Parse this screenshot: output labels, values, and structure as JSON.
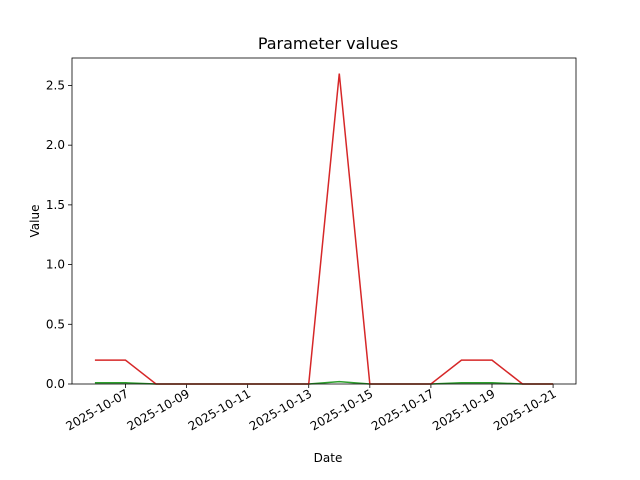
{
  "chart_data": {
    "type": "line",
    "title": "Parameter values",
    "x_label": "Date",
    "y_label": "Value",
    "x": [
      "2025-10-06",
      "2025-10-07",
      "2025-10-08",
      "2025-10-09",
      "2025-10-10",
      "2025-10-11",
      "2025-10-12",
      "2025-10-13",
      "2025-10-14",
      "2025-10-15",
      "2025-10-16",
      "2025-10-17",
      "2025-10-18",
      "2025-10-19",
      "2025-10-20",
      "2025-10-21"
    ],
    "series": [
      {
        "color": "#2ca02c",
        "values": [
          0.01,
          0.01,
          0,
          0,
          0,
          0,
          0,
          0,
          0.02,
          0,
          0,
          0,
          0.01,
          0.01,
          0,
          0
        ]
      },
      {
        "color": "#d62728",
        "values": [
          0.2,
          0.2,
          0,
          0,
          0,
          0,
          0,
          0,
          2.6,
          0,
          0,
          0,
          0.2,
          0.2,
          0,
          0
        ]
      }
    ],
    "xlim": [
      "2025-10-05T06:00:00Z",
      "2025-10-21T18:00:00Z"
    ],
    "xticks": [
      "2025-10-07",
      "2025-10-09",
      "2025-10-11",
      "2025-10-13",
      "2025-10-15",
      "2025-10-17",
      "2025-10-19",
      "2025-10-21"
    ],
    "ylim": [
      0,
      2.73
    ],
    "yticks": [
      {
        "value": 0,
        "label": "0.0"
      },
      0.5,
      {
        "value": 1,
        "label": "1.0"
      },
      1.5,
      {
        "value": 2,
        "label": "2.0"
      },
      2.5
    ]
  }
}
